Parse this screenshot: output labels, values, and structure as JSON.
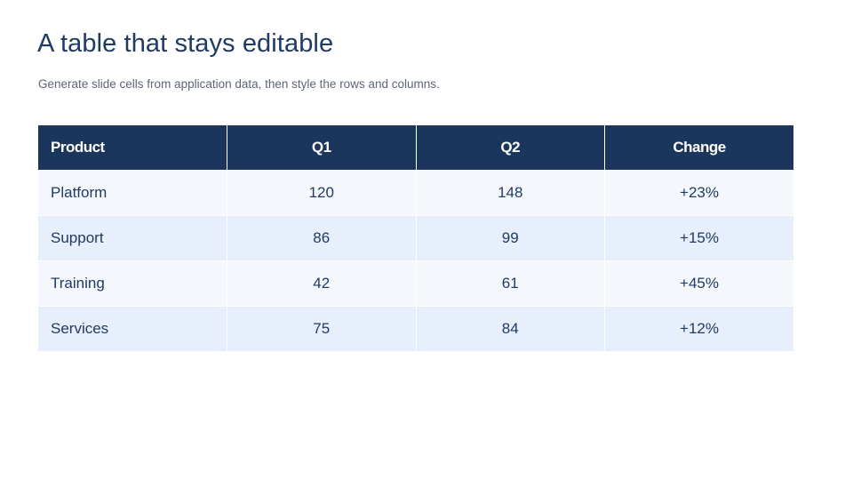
{
  "slide": {
    "title": "A table that stays editable",
    "subtitle": "Generate slide cells from application data, then style the rows and columns."
  },
  "table": {
    "headers": [
      "Product",
      "Q1",
      "Q2",
      "Change"
    ],
    "rows": [
      [
        "Platform",
        "120",
        "148",
        "+23%"
      ],
      [
        "Support",
        "86",
        "99",
        "+15%"
      ],
      [
        "Training",
        "42",
        "61",
        "+45%"
      ],
      [
        "Services",
        "75",
        "84",
        "+12%"
      ]
    ]
  },
  "colors": {
    "header_bg": "#1b365d",
    "row_light": "#f4f8fd",
    "row_alt": "#e6effb",
    "text": "#1f3a63"
  }
}
